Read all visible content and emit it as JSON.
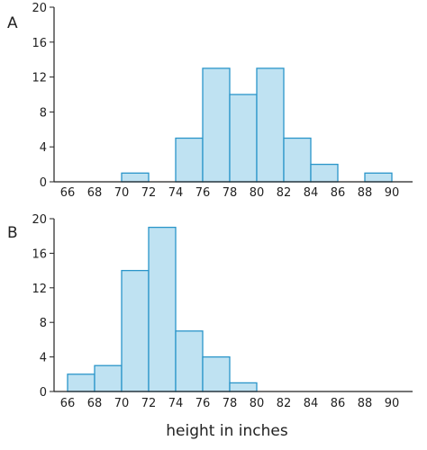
{
  "chart_data": [
    {
      "type": "bar",
      "panel_label": "A",
      "bin_edges": [
        66,
        68,
        70,
        72,
        74,
        76,
        78,
        80,
        82,
        84,
        86,
        88,
        90
      ],
      "values": [
        0,
        0,
        1,
        0,
        5,
        13,
        10,
        13,
        5,
        2,
        0,
        1
      ],
      "xticks": [
        "66",
        "68",
        "70",
        "72",
        "74",
        "76",
        "78",
        "80",
        "82",
        "84",
        "86",
        "88",
        "90"
      ],
      "yticks": [
        "0",
        "4",
        "8",
        "12",
        "16",
        "20"
      ],
      "ylim": [
        0,
        20
      ],
      "xlim": [
        65,
        92
      ],
      "grid": false
    },
    {
      "type": "bar",
      "panel_label": "B",
      "bin_edges": [
        66,
        68,
        70,
        72,
        74,
        76,
        78,
        80,
        82,
        84,
        86,
        88,
        90
      ],
      "values": [
        2,
        3,
        14,
        19,
        7,
        4,
        1,
        0,
        0,
        0,
        0,
        0
      ],
      "xticks": [
        "66",
        "68",
        "70",
        "72",
        "74",
        "76",
        "78",
        "80",
        "82",
        "84",
        "86",
        "88",
        "90"
      ],
      "yticks": [
        "0",
        "4",
        "8",
        "12",
        "16",
        "20"
      ],
      "ylim": [
        0,
        20
      ],
      "xlim": [
        65,
        92
      ],
      "grid": false
    }
  ],
  "xlabel": "height in inches",
  "colors": {
    "bar_fill": "#bfe2f2",
    "bar_stroke": "#2a95c9",
    "axis": "#222222"
  }
}
